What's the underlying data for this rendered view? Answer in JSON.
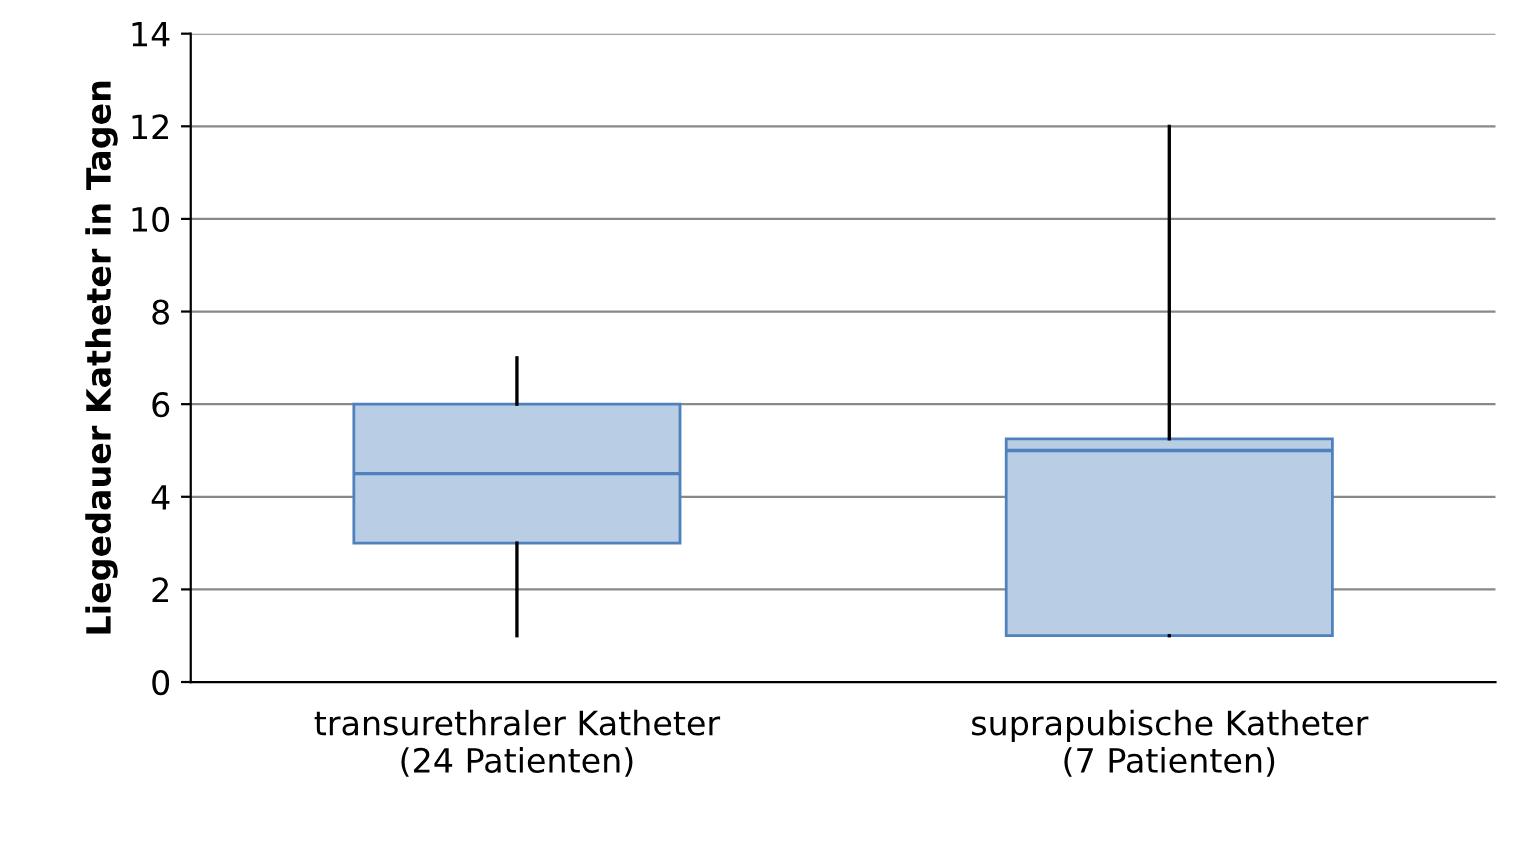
{
  "chart_data": {
    "type": "box",
    "ylabel": "Liegedauer Katheter in Tagen",
    "categories": [
      "transurethraler Katheter\n(24 Patienten)",
      "suprapubische Katheter\n(7 Patienten)"
    ],
    "boxes": [
      {
        "low": 1,
        "q1": 3,
        "median": 4.5,
        "q3": 6,
        "high": 7
      },
      {
        "low": 1,
        "q1": 1,
        "median": 5,
        "q3": 5.25,
        "high": 12
      }
    ],
    "color": "#b9cde5",
    "ylim": [
      0,
      14
    ],
    "yticks": [
      0,
      2,
      4,
      6,
      8,
      10,
      12,
      14
    ],
    "grid": "y"
  }
}
